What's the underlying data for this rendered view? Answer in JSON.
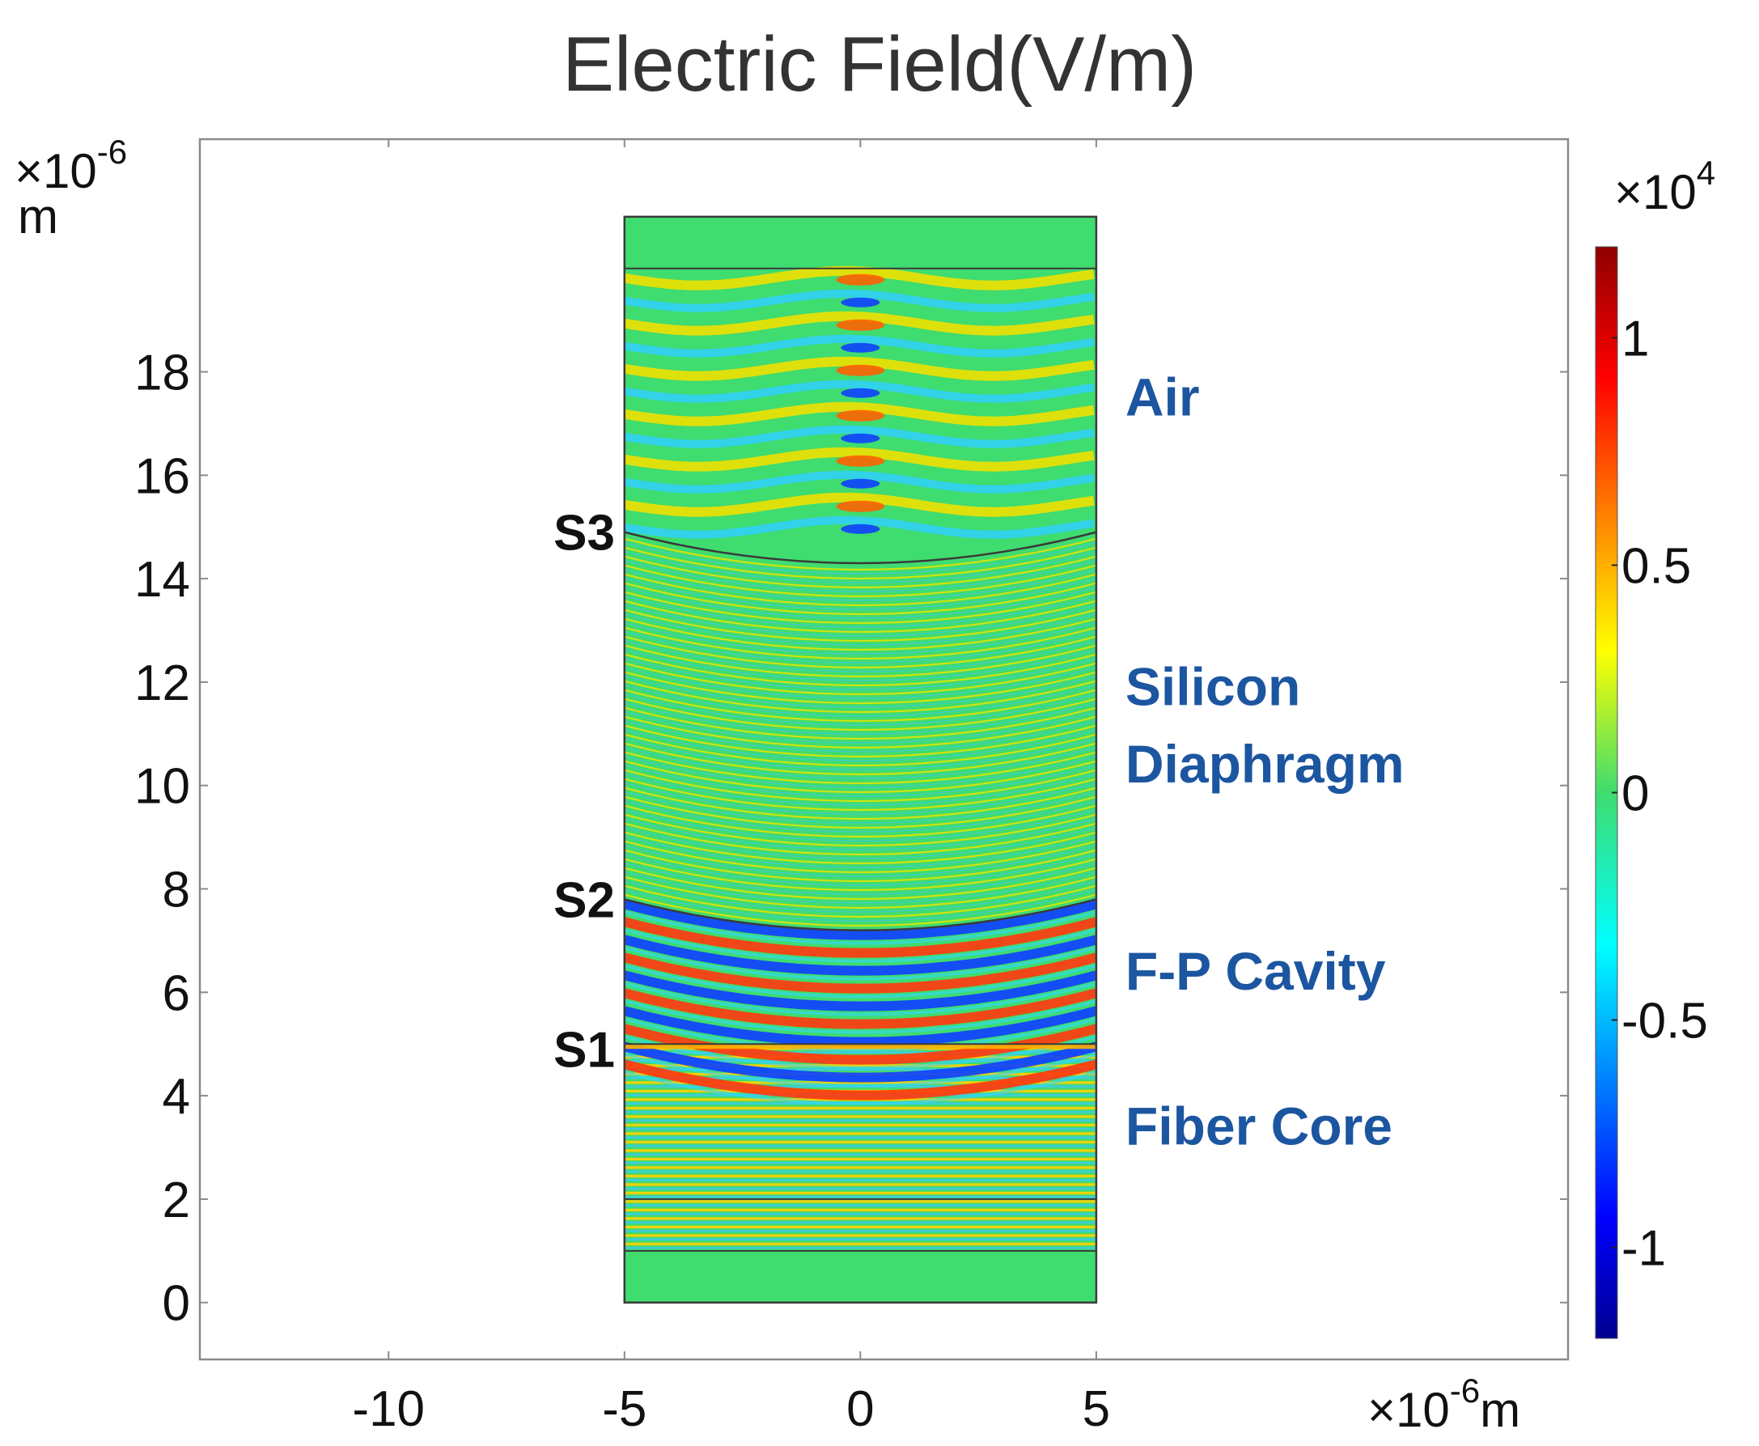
{
  "chart_data": {
    "type": "heatmap",
    "title": "Electric Field(V/m)",
    "x_axis": {
      "min": -14,
      "max": 15,
      "ticks": [
        -10,
        -5,
        0,
        5
      ],
      "tick_labels": [
        "-10",
        "-5",
        "0",
        "5"
      ],
      "multiplier": "×10",
      "multiplier_exp": "-6",
      "unit": "m"
    },
    "y_axis": {
      "min": -1.1,
      "max": 22.5,
      "ticks": [
        0,
        2,
        4,
        6,
        8,
        10,
        12,
        14,
        16,
        18
      ],
      "tick_labels": [
        "0",
        "2",
        "4",
        "6",
        "8",
        "10",
        "12",
        "14",
        "16",
        "18"
      ],
      "multiplier": "×10",
      "multiplier_exp": "-6",
      "unit": "m"
    },
    "domain": {
      "x_range": [
        -5,
        5
      ],
      "y_range": [
        0,
        21
      ]
    },
    "colorbar": {
      "range": [
        -1.2,
        1.2
      ],
      "multiplier": "×10",
      "multiplier_exp": "4",
      "ticks": [
        1,
        0.5,
        0,
        -0.5,
        -1
      ],
      "tick_labels": [
        "1",
        "0.5",
        "0",
        "-0.5",
        "-1"
      ],
      "colormap": "jet"
    },
    "boundaries": [
      {
        "name": "S1",
        "y_edge": 5.0,
        "y_center": 5.0
      },
      {
        "name": "S2",
        "y_edge": 7.8,
        "y_center": 7.2
      },
      {
        "name": "S3",
        "y_edge": 14.9,
        "y_center": 14.3
      }
    ],
    "surface_labels": [
      {
        "text": "S3",
        "y": 14.9
      },
      {
        "text": "S2",
        "y": 7.8
      },
      {
        "text": "S1",
        "y": 4.9
      }
    ],
    "region_labels": [
      {
        "text": "Air",
        "y": 17.5
      },
      {
        "text": "Silicon",
        "y": 11.9
      },
      {
        "text": "Diaphragm",
        "y": 10.4
      },
      {
        "text": "F-P Cavity",
        "y": 6.4
      },
      {
        "text": "Fiber Core",
        "y": 3.4
      }
    ],
    "region_label_color": "#1c56a0"
  }
}
